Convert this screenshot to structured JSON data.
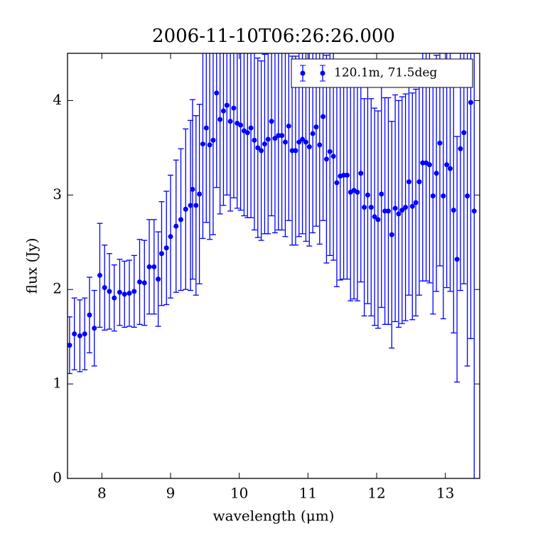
{
  "chart_data": {
    "type": "errorbar",
    "title": "2006-11-10T06:26:26.000",
    "xlabel": "wavelength (μm)",
    "ylabel": "flux (Jy)",
    "xlim": [
      7.5,
      13.5
    ],
    "ylim": [
      0,
      4.5
    ],
    "xticks": [
      8,
      9,
      10,
      11,
      12,
      13
    ],
    "yticks": [
      0,
      1,
      2,
      3,
      4
    ],
    "legend": "upper right",
    "x": [
      7.53,
      7.6,
      7.68,
      7.75,
      7.82,
      7.89,
      7.97,
      8.04,
      8.11,
      8.18,
      8.26,
      8.33,
      8.4,
      8.47,
      8.55,
      8.62,
      8.69,
      8.76,
      8.82,
      8.87,
      8.94,
      9.0,
      9.08,
      9.15,
      9.22,
      9.29,
      9.32,
      9.37,
      9.42,
      9.47,
      9.52,
      9.57,
      9.62,
      9.67,
      9.72,
      9.77,
      9.82,
      9.87,
      9.92,
      9.97,
      10.02,
      10.07,
      10.12,
      10.17,
      10.22,
      10.27,
      10.32,
      10.37,
      10.42,
      10.47,
      10.52,
      10.57,
      10.62,
      10.67,
      10.72,
      10.77,
      10.82,
      10.87,
      10.92,
      10.97,
      11.02,
      11.07,
      11.12,
      11.17,
      11.22,
      11.27,
      11.32,
      11.37,
      11.42,
      11.47,
      11.52,
      11.57,
      11.62,
      11.67,
      11.72,
      11.77,
      11.82,
      11.87,
      11.92,
      11.97,
      12.02,
      12.07,
      12.12,
      12.17,
      12.22,
      12.27,
      12.32,
      12.37,
      12.42,
      12.47,
      12.52,
      12.57,
      12.62,
      12.67,
      12.72,
      12.77,
      12.82,
      12.87,
      12.92,
      12.97,
      13.02,
      13.07,
      13.12,
      13.17,
      13.22,
      13.27,
      13.32,
      13.37,
      13.42
    ],
    "series": [
      {
        "name": "120.1m, 71.5deg",
        "color": "#0000ff",
        "values": [
          1.41,
          1.53,
          1.51,
          1.53,
          1.73,
          1.59,
          2.15,
          2.02,
          1.98,
          1.91,
          1.97,
          1.95,
          1.96,
          1.98,
          2.08,
          2.07,
          2.24,
          2.24,
          2.11,
          2.38,
          2.44,
          2.56,
          2.67,
          2.74,
          2.85,
          2.89,
          3.06,
          2.89,
          3.01,
          3.54,
          3.71,
          3.53,
          3.58,
          4.08,
          3.8,
          3.89,
          3.95,
          3.78,
          3.92,
          3.76,
          3.74,
          3.68,
          3.66,
          3.71,
          3.58,
          3.5,
          3.47,
          3.54,
          3.59,
          3.78,
          3.6,
          3.63,
          3.63,
          3.56,
          3.73,
          3.47,
          3.47,
          3.56,
          3.59,
          3.56,
          3.51,
          3.65,
          3.72,
          3.53,
          3.83,
          3.38,
          3.46,
          3.41,
          3.13,
          3.2,
          3.21,
          3.21,
          3.03,
          3.05,
          3.03,
          3.23,
          2.87,
          3.0,
          2.87,
          2.77,
          2.74,
          3.01,
          2.83,
          2.83,
          2.58,
          2.86,
          2.8,
          2.84,
          2.87,
          3.14,
          2.88,
          2.92,
          3.14,
          3.34,
          3.34,
          3.32,
          2.99,
          3.23,
          3.55,
          2.99,
          3.32,
          3.28,
          2.84,
          2.32,
          3.49,
          3.66,
          2.99,
          3.98,
          2.83
        ],
        "errors": [
          0.3,
          0.38,
          0.38,
          0.38,
          0.4,
          0.4,
          0.55,
          0.45,
          0.4,
          0.35,
          0.35,
          0.35,
          0.35,
          0.38,
          0.45,
          0.45,
          0.5,
          0.5,
          0.5,
          0.55,
          0.6,
          0.65,
          0.7,
          0.75,
          0.85,
          0.9,
          0.95,
          0.95,
          0.95,
          1.0,
          1.0,
          1.0,
          1.0,
          1.0,
          1.0,
          1.0,
          0.95,
          0.95,
          0.95,
          0.9,
          0.9,
          0.9,
          0.9,
          0.95,
          0.95,
          0.95,
          0.95,
          0.95,
          1.0,
          1.0,
          1.0,
          1.0,
          1.0,
          1.0,
          1.0,
          1.0,
          1.0,
          1.0,
          1.0,
          1.05,
          1.05,
          1.05,
          1.05,
          1.05,
          1.1,
          1.1,
          1.1,
          1.1,
          1.1,
          1.1,
          1.1,
          1.1,
          1.15,
          1.15,
          1.15,
          1.15,
          1.15,
          1.15,
          1.15,
          1.15,
          1.15,
          1.2,
          1.2,
          1.2,
          1.2,
          1.2,
          1.2,
          1.2,
          1.2,
          1.2,
          1.2,
          1.2,
          1.2,
          1.25,
          1.25,
          1.25,
          1.25,
          1.25,
          1.3,
          1.3,
          1.3,
          1.3,
          1.3,
          1.3,
          1.5,
          1.6,
          1.8,
          2.5,
          3.0
        ]
      }
    ]
  }
}
